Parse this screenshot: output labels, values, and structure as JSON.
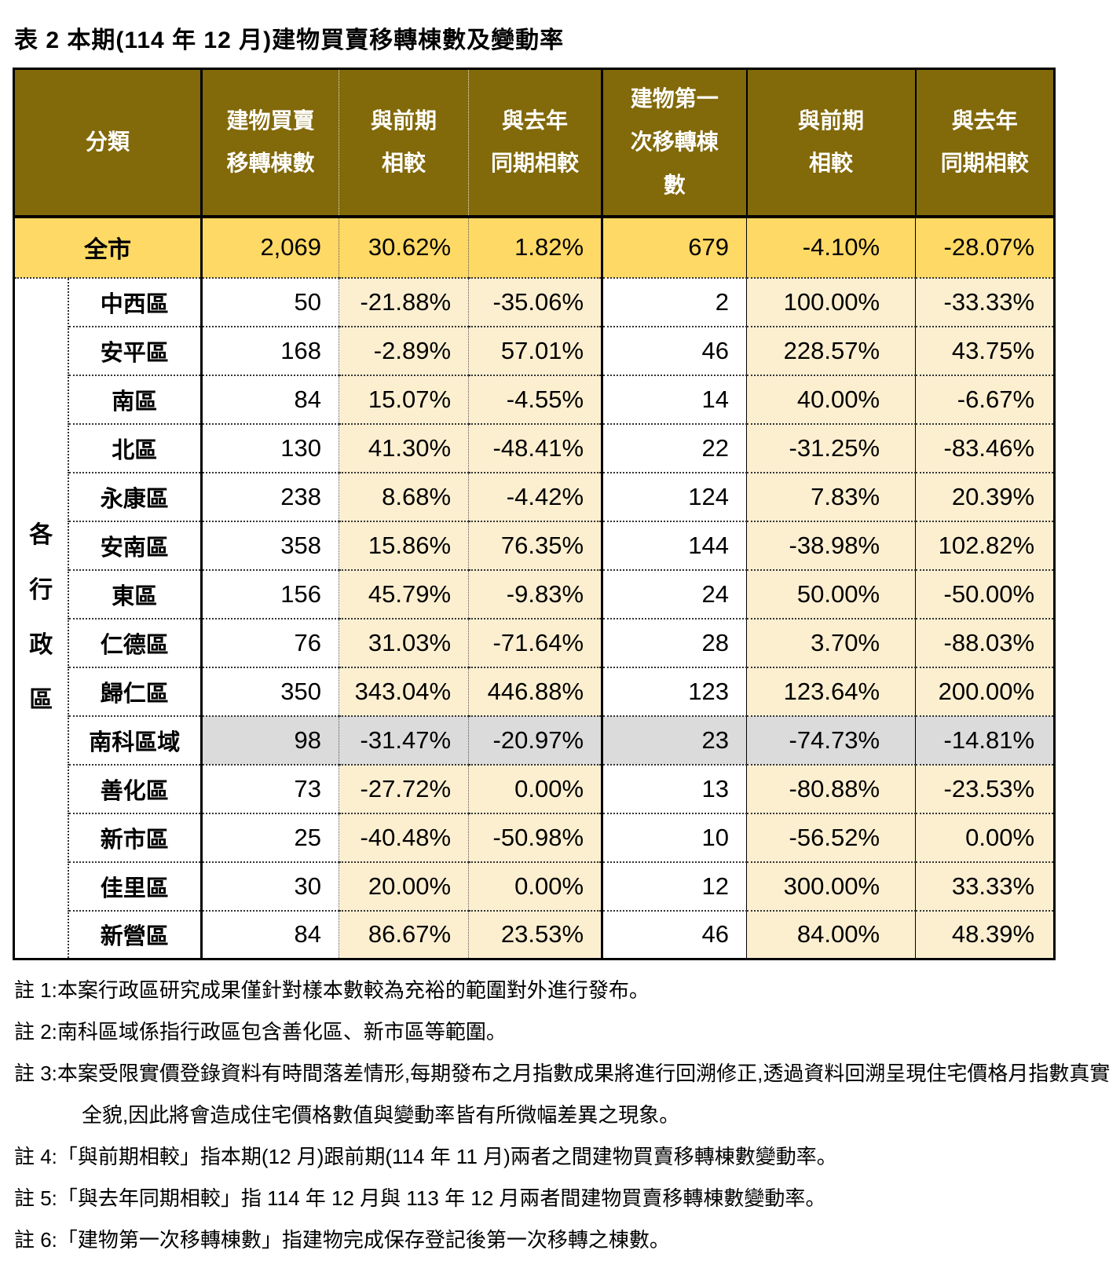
{
  "title": "表 2 本期(114 年 12 月)建物買賣移轉棟數及變動率",
  "colors": {
    "header-bg": "#82690a",
    "city-bg": "#ffd965",
    "cream-bg": "#fcefd0",
    "gray-bg": "#dbdbdb"
  },
  "table": {
    "headers": {
      "category": "分類",
      "col_sales": "建物買賣\n移轉棟數",
      "col_prev": "與前期\n相較",
      "col_yoy": "與去年\n同期相較",
      "col_first": "建物第一\n次移轉棟\n數",
      "col_first_prev": "與前期\n相較",
      "col_first_yoy": "與去年\n同期相較"
    },
    "group_label": "各行政區",
    "city_row": {
      "label": "全市",
      "values": [
        "2,069",
        "30.62%",
        "1.82%",
        "679",
        "-4.10%",
        "-28.07%"
      ]
    },
    "districts": [
      {
        "name": "中西區",
        "values": [
          "50",
          "-21.88%",
          "-35.06%",
          "2",
          "100.00%",
          "-33.33%"
        ],
        "highlight": false
      },
      {
        "name": "安平區",
        "values": [
          "168",
          "-2.89%",
          "57.01%",
          "46",
          "228.57%",
          "43.75%"
        ],
        "highlight": false
      },
      {
        "name": "南區",
        "values": [
          "84",
          "15.07%",
          "-4.55%",
          "14",
          "40.00%",
          "-6.67%"
        ],
        "highlight": false
      },
      {
        "name": "北區",
        "values": [
          "130",
          "41.30%",
          "-48.41%",
          "22",
          "-31.25%",
          "-83.46%"
        ],
        "highlight": false
      },
      {
        "name": "永康區",
        "values": [
          "238",
          "8.68%",
          "-4.42%",
          "124",
          "7.83%",
          "20.39%"
        ],
        "highlight": false
      },
      {
        "name": "安南區",
        "values": [
          "358",
          "15.86%",
          "76.35%",
          "144",
          "-38.98%",
          "102.82%"
        ],
        "highlight": false
      },
      {
        "name": "東區",
        "values": [
          "156",
          "45.79%",
          "-9.83%",
          "24",
          "50.00%",
          "-50.00%"
        ],
        "highlight": false
      },
      {
        "name": "仁德區",
        "values": [
          "76",
          "31.03%",
          "-71.64%",
          "28",
          "3.70%",
          "-88.03%"
        ],
        "highlight": false
      },
      {
        "name": "歸仁區",
        "values": [
          "350",
          "343.04%",
          "446.88%",
          "123",
          "123.64%",
          "200.00%"
        ],
        "highlight": false
      },
      {
        "name": "南科區域",
        "values": [
          "98",
          "-31.47%",
          "-20.97%",
          "23",
          "-74.73%",
          "-14.81%"
        ],
        "highlight": true
      },
      {
        "name": "善化區",
        "values": [
          "73",
          "-27.72%",
          "0.00%",
          "13",
          "-80.88%",
          "-23.53%"
        ],
        "highlight": false
      },
      {
        "name": "新市區",
        "values": [
          "25",
          "-40.48%",
          "-50.98%",
          "10",
          "-56.52%",
          "0.00%"
        ],
        "highlight": false
      },
      {
        "name": "佳里區",
        "values": [
          "30",
          "20.00%",
          "0.00%",
          "12",
          "300.00%",
          "33.33%"
        ],
        "highlight": false
      },
      {
        "name": "新營區",
        "values": [
          "84",
          "86.67%",
          "23.53%",
          "46",
          "84.00%",
          "48.39%"
        ],
        "highlight": false
      }
    ]
  },
  "notes": [
    "註 1:本案行政區研究成果僅針對樣本數較為充裕的範圍對外進行發布。",
    "註 2:南科區域係指行政區包含善化區、新市區等範圍。",
    "註 3:本案受限實價登錄資料有時間落差情形,每期發布之月指數成果將進行回溯修正,透過資料回溯呈現住宅價格月指數真實全貌,因此將會造成住宅價格數值與變動率皆有所微幅差異之現象。",
    "註 4:「與前期相較」指本期(12 月)跟前期(114 年 11 月)兩者之間建物買賣移轉棟數變動率。",
    "註 5:「與去年同期相較」指 114 年 12 月與 113 年 12 月兩者間建物買賣移轉棟數變動率。",
    "註 6:「建物第一次移轉棟數」指建物完成保存登記後第一次移轉之棟數。"
  ]
}
